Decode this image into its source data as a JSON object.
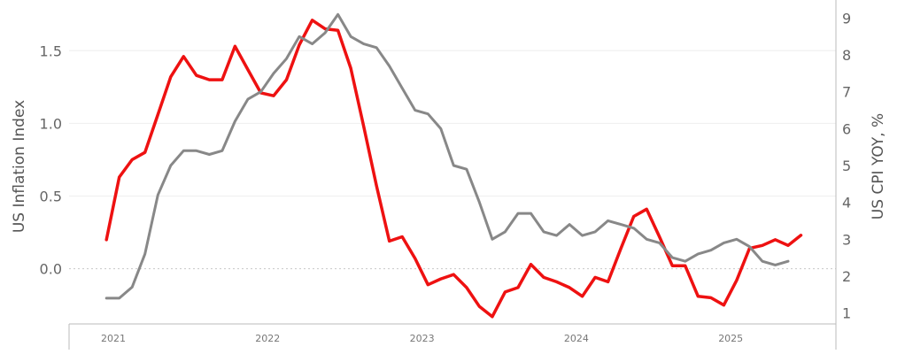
{
  "chart_data": {
    "type": "line",
    "title": "",
    "ylabel_left": "US Inflation Index",
    "ylabel_right": "US CPI YOY, %",
    "xlabel": "",
    "grid": true,
    "legend": "none",
    "x_ticks": [
      "2021",
      "2022",
      "2023",
      "2024",
      "2025"
    ],
    "left_axis": {
      "ylim": [
        -0.38,
        1.8
      ],
      "ticks": [
        0.0,
        0.5,
        1.0,
        1.5
      ],
      "tick_labels": [
        "0.0",
        "0.5",
        "1.0",
        "1.5"
      ]
    },
    "right_axis": {
      "ylim": [
        0.7,
        9.3
      ],
      "ticks": [
        1,
        2,
        3,
        4,
        5,
        6,
        7,
        8,
        9
      ],
      "tick_labels": [
        "1",
        "2",
        "3",
        "4",
        "5",
        "6",
        "7",
        "8",
        "9"
      ]
    },
    "series": [
      {
        "axis": "left",
        "color": "#ee1111",
        "points": [
          [
            "2020-12-15",
            0.2
          ],
          [
            "2021-01-15",
            0.63
          ],
          [
            "2021-02-15",
            0.75
          ],
          [
            "2021-03-15",
            0.8
          ],
          [
            "2021-04-15",
            1.06
          ],
          [
            "2021-05-15",
            1.32
          ],
          [
            "2021-06-15",
            1.46
          ],
          [
            "2021-07-15",
            1.33
          ],
          [
            "2021-08-15",
            1.3
          ],
          [
            "2021-09-15",
            1.3
          ],
          [
            "2021-10-15",
            1.53
          ],
          [
            "2021-11-15",
            1.37
          ],
          [
            "2021-12-15",
            1.21
          ],
          [
            "2022-01-15",
            1.19
          ],
          [
            "2022-02-15",
            1.3
          ],
          [
            "2022-03-15",
            1.54
          ],
          [
            "2022-04-15",
            1.71
          ],
          [
            "2022-05-15",
            1.65
          ],
          [
            "2022-06-15",
            1.64
          ],
          [
            "2022-07-15",
            1.38
          ],
          [
            "2022-08-15",
            0.98
          ],
          [
            "2022-09-15",
            0.57
          ],
          [
            "2022-10-15",
            0.19
          ],
          [
            "2022-11-15",
            0.22
          ],
          [
            "2022-12-15",
            0.07
          ],
          [
            "2023-01-15",
            -0.11
          ],
          [
            "2023-02-15",
            -0.07
          ],
          [
            "2023-03-15",
            -0.04
          ],
          [
            "2023-04-15",
            -0.13
          ],
          [
            "2023-05-15",
            -0.26
          ],
          [
            "2023-06-15",
            -0.33
          ],
          [
            "2023-07-15",
            -0.16
          ],
          [
            "2023-08-15",
            -0.13
          ],
          [
            "2023-09-15",
            0.03
          ],
          [
            "2023-10-15",
            -0.06
          ],
          [
            "2023-11-15",
            -0.09
          ],
          [
            "2023-12-15",
            -0.13
          ],
          [
            "2024-01-15",
            -0.19
          ],
          [
            "2024-02-15",
            -0.06
          ],
          [
            "2024-03-15",
            -0.09
          ],
          [
            "2024-04-15",
            0.14
          ],
          [
            "2024-05-15",
            0.36
          ],
          [
            "2024-06-15",
            0.41
          ],
          [
            "2024-07-15",
            0.22
          ],
          [
            "2024-08-15",
            0.02
          ],
          [
            "2024-09-15",
            0.02
          ],
          [
            "2024-10-15",
            -0.19
          ],
          [
            "2024-11-15",
            -0.2
          ],
          [
            "2024-12-15",
            -0.25
          ],
          [
            "2025-01-15",
            -0.08
          ],
          [
            "2025-02-15",
            0.14
          ],
          [
            "2025-03-15",
            0.16
          ],
          [
            "2025-04-15",
            0.2
          ],
          [
            "2025-05-15",
            0.16
          ],
          [
            "2025-06-15",
            0.23
          ]
        ]
      },
      {
        "axis": "right",
        "color": "#888888",
        "points": [
          [
            "2020-12-15",
            1.4
          ],
          [
            "2021-01-15",
            1.4
          ],
          [
            "2021-02-15",
            1.7
          ],
          [
            "2021-03-15",
            2.6
          ],
          [
            "2021-04-15",
            4.2
          ],
          [
            "2021-05-15",
            5.0
          ],
          [
            "2021-06-15",
            5.4
          ],
          [
            "2021-07-15",
            5.4
          ],
          [
            "2021-08-15",
            5.3
          ],
          [
            "2021-09-15",
            5.4
          ],
          [
            "2021-10-15",
            6.2
          ],
          [
            "2021-11-15",
            6.8
          ],
          [
            "2021-12-15",
            7.0
          ],
          [
            "2022-01-15",
            7.5
          ],
          [
            "2022-02-15",
            7.9
          ],
          [
            "2022-03-15",
            8.5
          ],
          [
            "2022-04-15",
            8.3
          ],
          [
            "2022-05-15",
            8.6
          ],
          [
            "2022-06-15",
            9.1
          ],
          [
            "2022-07-15",
            8.5
          ],
          [
            "2022-08-15",
            8.3
          ],
          [
            "2022-09-15",
            8.2
          ],
          [
            "2022-10-15",
            7.7
          ],
          [
            "2022-11-15",
            7.1
          ],
          [
            "2022-12-15",
            6.5
          ],
          [
            "2023-01-15",
            6.4
          ],
          [
            "2023-02-15",
            6.0
          ],
          [
            "2023-03-15",
            5.0
          ],
          [
            "2023-04-15",
            4.9
          ],
          [
            "2023-05-15",
            4.0
          ],
          [
            "2023-06-15",
            3.0
          ],
          [
            "2023-07-15",
            3.2
          ],
          [
            "2023-08-15",
            3.7
          ],
          [
            "2023-09-15",
            3.7
          ],
          [
            "2023-10-15",
            3.2
          ],
          [
            "2023-11-15",
            3.1
          ],
          [
            "2023-12-15",
            3.4
          ],
          [
            "2024-01-15",
            3.1
          ],
          [
            "2024-02-15",
            3.2
          ],
          [
            "2024-03-15",
            3.5
          ],
          [
            "2024-04-15",
            3.4
          ],
          [
            "2024-05-15",
            3.3
          ],
          [
            "2024-06-15",
            3.0
          ],
          [
            "2024-07-15",
            2.9
          ],
          [
            "2024-08-15",
            2.5
          ],
          [
            "2024-09-15",
            2.4
          ],
          [
            "2024-10-15",
            2.6
          ],
          [
            "2024-11-15",
            2.7
          ],
          [
            "2024-12-15",
            2.9
          ],
          [
            "2025-01-15",
            3.0
          ],
          [
            "2025-02-15",
            2.8
          ],
          [
            "2025-03-15",
            2.4
          ],
          [
            "2025-04-15",
            2.3
          ],
          [
            "2025-05-15",
            2.4
          ]
        ]
      }
    ]
  }
}
